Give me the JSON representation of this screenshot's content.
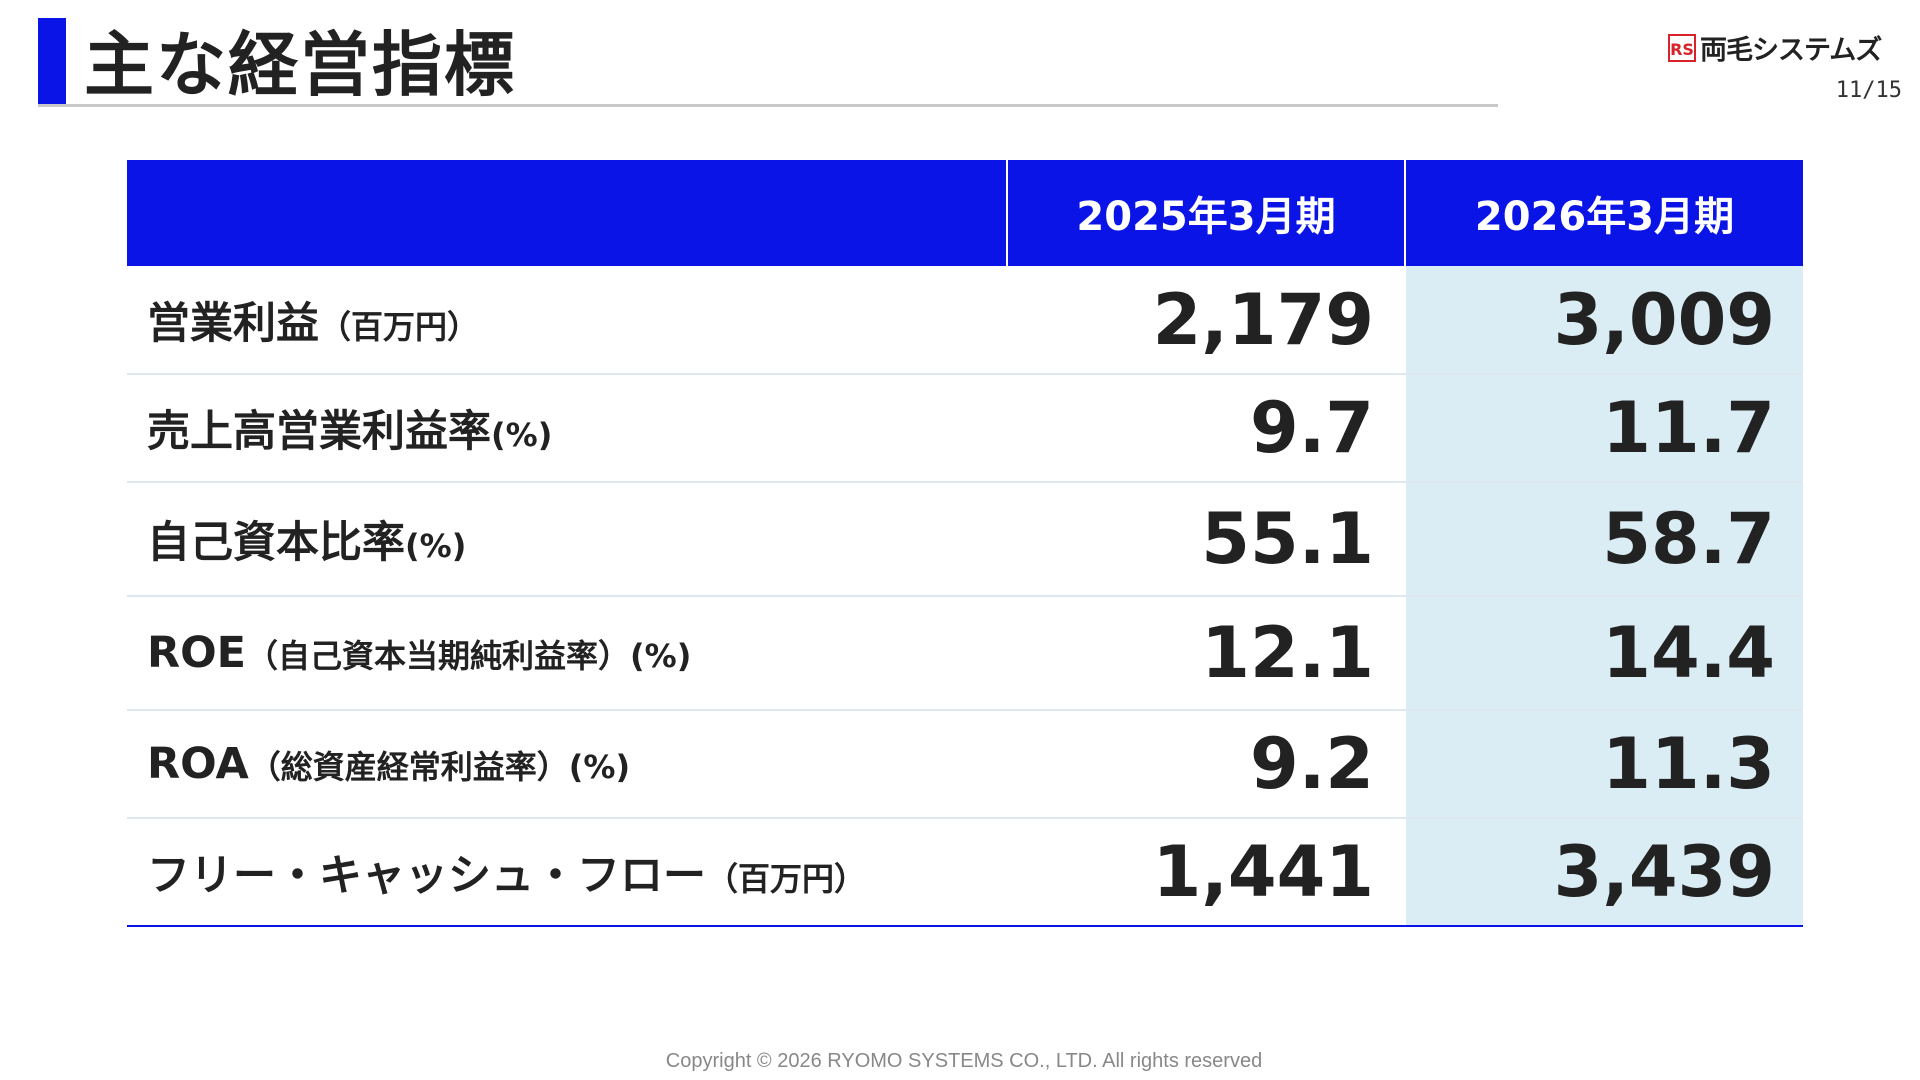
{
  "header": {
    "title": "主な経営指標",
    "logo_mark": "RS",
    "logo_text": "両毛システムズ",
    "page_number": "11/15"
  },
  "table": {
    "columns": [
      "",
      "2025年3月期",
      "2026年3月期"
    ],
    "rows": [
      {
        "label": "営業利益",
        "sub": "（百万円）",
        "prev": "2,179",
        "curr": "3,009"
      },
      {
        "label": "売上高営業利益率",
        "sub": "(%)",
        "prev": "9.7",
        "curr": "11.7"
      },
      {
        "label": "自己資本比率",
        "sub": "(%)",
        "prev": "55.1",
        "curr": "58.7"
      },
      {
        "label": "ROE",
        "sub": "（自己資本当期純利益率）(%)",
        "prev": "12.1",
        "curr": "14.4"
      },
      {
        "label": "ROA",
        "sub": "（総資産経常利益率）(%)",
        "prev": "9.2",
        "curr": "11.3"
      },
      {
        "label": "フリー・キャッシュ・フロー",
        "sub": "（百万円）",
        "prev": "1,441",
        "curr": "3,439"
      }
    ]
  },
  "footer": {
    "copyright": "Copyright © 2026 RYOMO  SYSTEMS CO., LTD. All rights reserved"
  },
  "colors": {
    "accent": "#0a14e6",
    "highlight_column": "#dbedf4"
  }
}
